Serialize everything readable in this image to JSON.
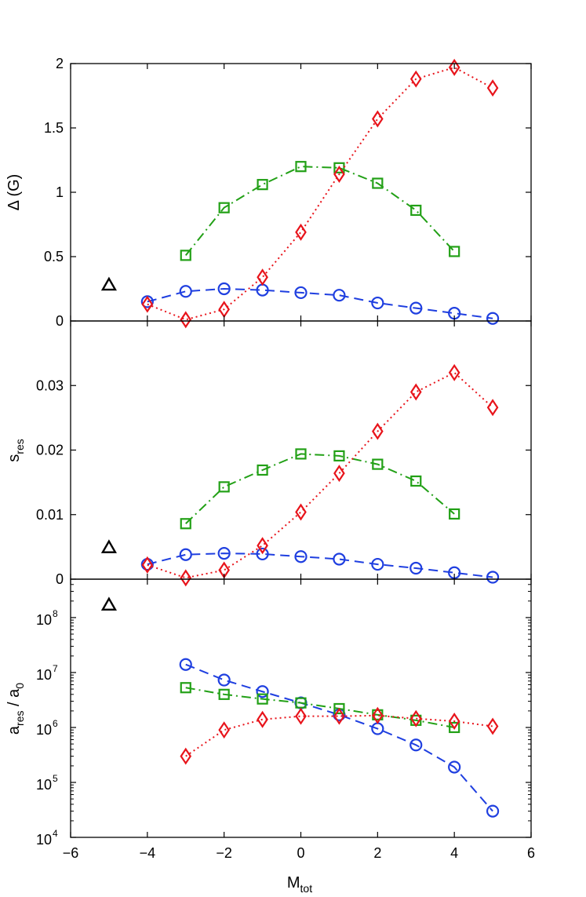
{
  "chart_data": [
    {
      "type": "line",
      "panel": "top",
      "ylabel": "Δ (G)",
      "ylim": [
        0,
        2
      ],
      "yticks": [
        0,
        0.5,
        1,
        1.5,
        2
      ],
      "ytick_labels": [
        "0",
        "0.5",
        "1",
        "1.5",
        "2"
      ],
      "xlim": [
        -6,
        6
      ],
      "series": [
        {
          "name": "circles",
          "color": "#1f3fe0",
          "marker": "circle",
          "style": "dashed",
          "x": [
            -4,
            -3,
            -2,
            -1,
            0,
            1,
            2,
            3,
            4,
            5
          ],
          "values": [
            0.15,
            0.23,
            0.25,
            0.24,
            0.22,
            0.2,
            0.14,
            0.1,
            0.06,
            0.02
          ]
        },
        {
          "name": "squares",
          "color": "#22a016",
          "marker": "square",
          "style": "dashdot",
          "x": [
            -3,
            -2,
            -1,
            0,
            1,
            2,
            3,
            4
          ],
          "values": [
            0.51,
            0.88,
            1.06,
            1.2,
            1.19,
            1.07,
            0.86,
            0.54
          ]
        },
        {
          "name": "diamonds",
          "color": "#e8141b",
          "marker": "diamond",
          "style": "dotted",
          "x": [
            -4,
            -3,
            -2,
            -1,
            0,
            1,
            2,
            3,
            4,
            5
          ],
          "values": [
            0.13,
            0.01,
            0.09,
            0.34,
            0.69,
            1.14,
            1.57,
            1.88,
            1.97,
            1.81
          ]
        }
      ],
      "annotation": {
        "marker": "triangle",
        "color": "#000000",
        "x": -5,
        "y": 0.28
      }
    },
    {
      "type": "line",
      "panel": "middle",
      "ylabel": "s",
      "ylabel_sub": "res",
      "ylim": [
        0,
        0.04
      ],
      "yticks": [
        0,
        0.01,
        0.02,
        0.03
      ],
      "ytick_labels": [
        "0",
        "0.01",
        "0.02",
        "0.03"
      ],
      "xlim": [
        -6,
        6
      ],
      "series": [
        {
          "name": "circles",
          "color": "#1f3fe0",
          "marker": "circle",
          "style": "dashed",
          "x": [
            -4,
            -3,
            -2,
            -1,
            0,
            1,
            2,
            3,
            4,
            5
          ],
          "values": [
            0.0023,
            0.0038,
            0.004,
            0.0039,
            0.0035,
            0.0031,
            0.0023,
            0.0017,
            0.001,
            0.0003
          ]
        },
        {
          "name": "squares",
          "color": "#22a016",
          "marker": "square",
          "style": "dashdot",
          "x": [
            -3,
            -2,
            -1,
            0,
            1,
            2,
            3,
            4
          ],
          "values": [
            0.0086,
            0.0143,
            0.0169,
            0.0194,
            0.0191,
            0.0178,
            0.0152,
            0.0101
          ]
        },
        {
          "name": "diamonds",
          "color": "#e8141b",
          "marker": "diamond",
          "style": "dotted",
          "x": [
            -4,
            -3,
            -2,
            -1,
            0,
            1,
            2,
            3,
            4,
            5
          ],
          "values": [
            0.0022,
            0.0002,
            0.0014,
            0.0052,
            0.0104,
            0.0164,
            0.0229,
            0.029,
            0.032,
            0.0266
          ]
        }
      ],
      "annotation": {
        "marker": "triangle",
        "color": "#000000",
        "x": -5,
        "y": 0.0049
      }
    },
    {
      "type": "line",
      "panel": "bottom",
      "yscale": "log",
      "ylabel": "a",
      "ylabel_sub": "res",
      "ylabel_mid": " / a",
      "ylabel_sub2": "0",
      "ylim": [
        10000,
        500000000
      ],
      "yticks": [
        10000,
        100000,
        1000000,
        10000000,
        100000000
      ],
      "ytick_base": "10",
      "ytick_exps": [
        "4",
        "5",
        "6",
        "7",
        "8"
      ],
      "xlim": [
        -6,
        6
      ],
      "xticks": [
        -6,
        -4,
        -2,
        0,
        2,
        4,
        6
      ],
      "xtick_labels": [
        "−6",
        "−4",
        "−2",
        "0",
        "2",
        "4",
        "6"
      ],
      "xlabel": "M",
      "xlabel_sub": "tot",
      "series": [
        {
          "name": "circles",
          "color": "#1f3fe0",
          "marker": "circle",
          "style": "dashed",
          "x": [
            -3,
            -2,
            -1,
            0,
            1,
            2,
            3,
            4,
            5
          ],
          "values": [
            14000000,
            7300000,
            4500000,
            2800000,
            1700000,
            950000,
            480000,
            190000,
            30000
          ]
        },
        {
          "name": "squares",
          "color": "#22a016",
          "marker": "square",
          "style": "dashdot",
          "x": [
            -3,
            -2,
            -1,
            0,
            1,
            2,
            3,
            4
          ],
          "values": [
            5300000,
            4000000,
            3300000,
            2800000,
            2200000,
            1700000,
            1350000,
            1000000
          ]
        },
        {
          "name": "diamonds",
          "color": "#e8141b",
          "marker": "diamond",
          "style": "dotted",
          "x": [
            -3,
            -2,
            -1,
            0,
            1,
            2,
            3,
            4,
            5
          ],
          "values": [
            300000,
            900000,
            1400000,
            1600000,
            1600000,
            1650000,
            1450000,
            1300000,
            1050000
          ]
        }
      ],
      "annotation": {
        "marker": "triangle",
        "color": "#000000",
        "x": -5,
        "y": 170000000
      }
    }
  ]
}
